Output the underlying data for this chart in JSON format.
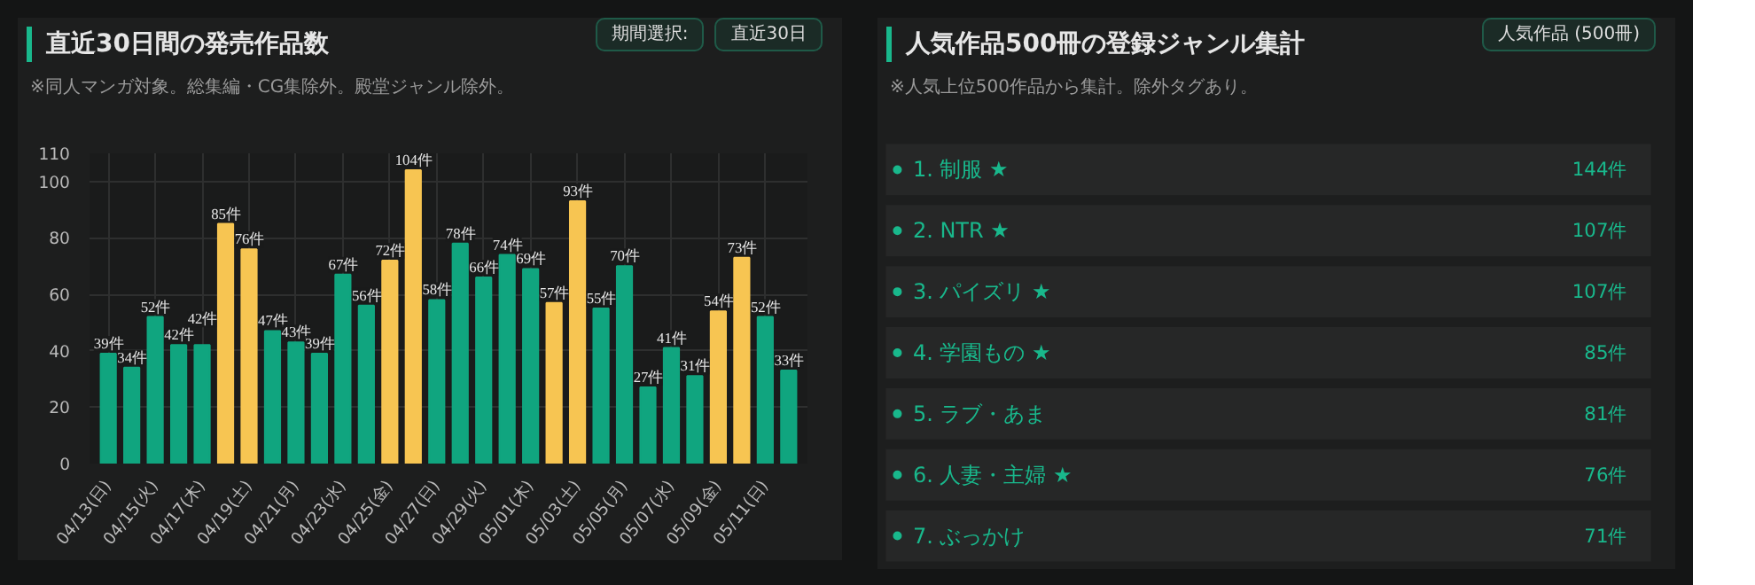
{
  "chart_data": [
    {
      "type": "bar",
      "title": "直近30日間の発売作品数",
      "subtitle": "※同人マンガ対象。総集編・CG集除外。殿堂ジャンル除外。",
      "annotations": [
        "期間選択:",
        "直近30日"
      ],
      "categories": [
        "04/13(日)",
        null,
        "04/15(火)",
        null,
        "04/17(木)",
        null,
        "04/19(土)",
        null,
        "04/21(月)",
        null,
        "04/23(水)",
        null,
        "04/25(金)",
        null,
        "04/27(日)",
        null,
        "04/29(火)",
        null,
        "05/01(木)",
        null,
        "05/03(土)",
        null,
        "05/05(月)",
        null,
        "05/07(水)",
        null,
        "05/09(金)",
        null,
        "05/11(日)",
        null
      ],
      "values": [
        39,
        34,
        52,
        42,
        42,
        85,
        76,
        47,
        43,
        39,
        67,
        56,
        72,
        104,
        58,
        78,
        66,
        74,
        69,
        57,
        93,
        55,
        70,
        27,
        41,
        31,
        54,
        73,
        52,
        33
      ],
      "value_labels": [
        "39件",
        "34件",
        "52件",
        "42件",
        "42件",
        "85件",
        "76件",
        "47件",
        "43件",
        "39件",
        "67件",
        "56件",
        "72件",
        "104件",
        "58件",
        "78件",
        "66件",
        "74件",
        "69件",
        "57件",
        "93件",
        "55件",
        "70件",
        "27件",
        "41件",
        "31件",
        "54件",
        "73件",
        "52件",
        "33件"
      ],
      "colors": [
        "#10a57f",
        "#10a57f",
        "#10a57f",
        "#10a57f",
        "#10a57f",
        "#f7c552",
        "#f7c552",
        "#10a57f",
        "#10a57f",
        "#10a57f",
        "#10a57f",
        "#10a57f",
        "#f7c552",
        "#f7c552",
        "#10a57f",
        "#10a57f",
        "#10a57f",
        "#10a57f",
        "#10a57f",
        "#f7c552",
        "#f7c552",
        "#10a57f",
        "#10a57f",
        "#10a57f",
        "#10a57f",
        "#10a57f",
        "#f7c552",
        "#f7c552",
        "#10a57f",
        "#10a57f"
      ],
      "ylim": [
        0,
        110
      ],
      "yticks": [
        0,
        20,
        40,
        60,
        80,
        100,
        110
      ],
      "grid": true
    },
    {
      "type": "other",
      "title": "人気作品500冊の登録ジャンル集計",
      "subtitle": "※人気上位500作品から集計。除外タグあり。",
      "annotations": [
        "人気作品 (500冊)"
      ],
      "categories": [
        "1. 制服 ★",
        "2. NTR ★",
        "3. パイズリ ★",
        "4. 学園もの ★",
        "5. ラブ・あま",
        "6. 人妻・主婦 ★",
        "7. ぶっかけ"
      ],
      "values": [
        144,
        107,
        107,
        85,
        81,
        76,
        71
      ],
      "value_labels": [
        "144件",
        "107件",
        "107件",
        "85件",
        "81件",
        "76件",
        "71件"
      ]
    }
  ]
}
